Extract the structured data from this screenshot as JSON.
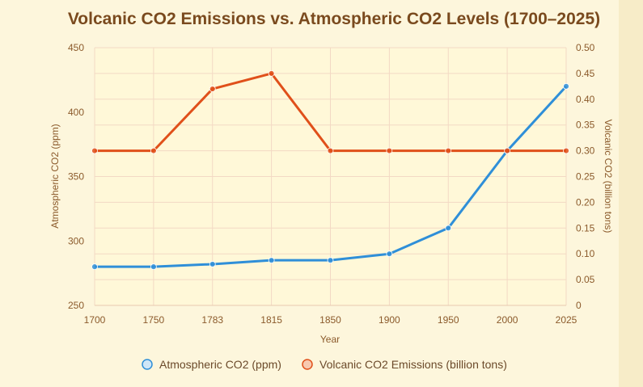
{
  "chart_data": {
    "type": "line",
    "title": "Volcanic CO2 Emissions vs. Atmospheric CO2 Levels (1700–2025)",
    "xlabel": "Year",
    "categories": [
      "1700",
      "1750",
      "1783",
      "1815",
      "1850",
      "1900",
      "1950",
      "2000",
      "2025"
    ],
    "y_left": {
      "label": "Atmospheric CO2 (ppm)",
      "ylim": [
        250,
        450
      ],
      "ticks": [
        "250",
        "300",
        "350",
        "400",
        "450"
      ]
    },
    "y_right": {
      "label": "Volcanic CO2 (billion tons)",
      "ylim": [
        0,
        0.5
      ],
      "ticks": [
        "0",
        "0.05",
        "0.10",
        "0.15",
        "0.20",
        "0.25",
        "0.30",
        "0.35",
        "0.40",
        "0.45",
        "0.50"
      ]
    },
    "series": [
      {
        "name": "Atmospheric CO2 (ppm)",
        "axis": "left",
        "color": "#2f8fd8",
        "values": [
          280,
          280,
          282,
          285,
          285,
          290,
          310,
          370,
          420
        ]
      },
      {
        "name": "Volcanic CO2 Emissions (billion tons)",
        "axis": "right",
        "color": "#e0501a",
        "values": [
          0.3,
          0.3,
          0.42,
          0.45,
          0.3,
          0.3,
          0.3,
          0.3,
          0.3
        ]
      }
    ],
    "grid": true,
    "legend_position": "bottom"
  }
}
